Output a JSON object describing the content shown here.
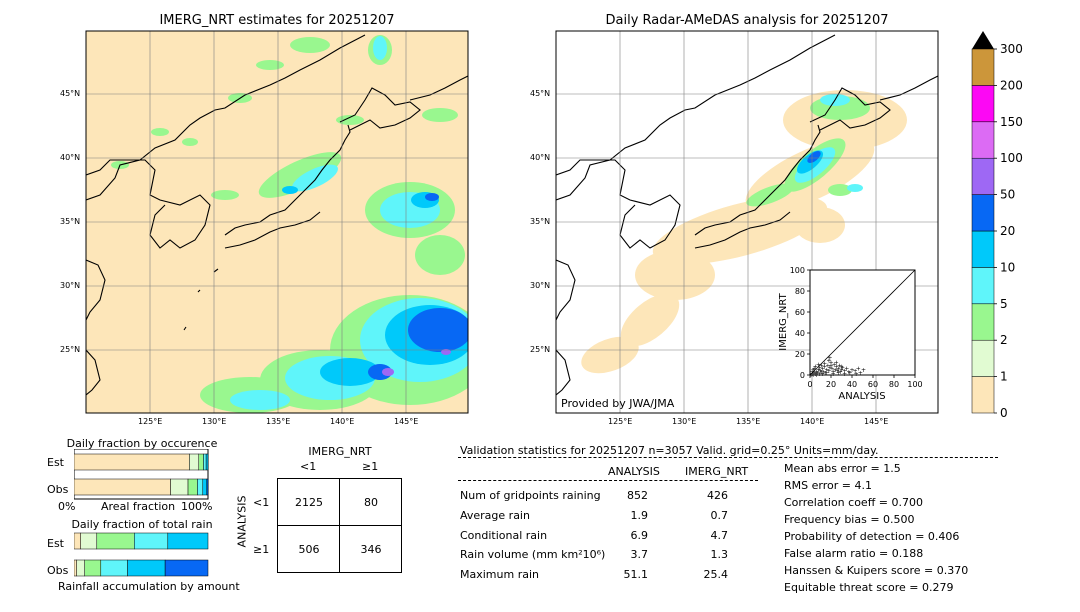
{
  "left_map": {
    "title": "IMERG_NRT estimates for 20251207",
    "lon_ticks": [
      "125°E",
      "130°E",
      "135°E",
      "140°E",
      "145°E"
    ],
    "lat_ticks": [
      "45°N",
      "40°N",
      "35°N",
      "30°N",
      "25°N"
    ]
  },
  "right_map": {
    "title": "Daily Radar-AMeDAS analysis for 20251207",
    "credit": "Provided by JWA/JMA",
    "lon_ticks": [
      "125°E",
      "130°E",
      "135°E",
      "140°E",
      "145°E"
    ],
    "lat_ticks": [
      "45°N",
      "40°N",
      "35°N",
      "30°N",
      "25°N"
    ]
  },
  "colorbar": {
    "labels": [
      "0",
      "1",
      "2",
      "5",
      "10",
      "20",
      "50",
      "100",
      "150",
      "200",
      "300"
    ],
    "colors": [
      "#fde6b9",
      "#e1fbd2",
      "#99f78f",
      "#5ff5fa",
      "#00c9fa",
      "#0768f4",
      "#9e68f4",
      "#dc6bf4",
      "#fc08f4",
      "#cc963a",
      "#000000"
    ]
  },
  "occurrence": {
    "title": "Daily fraction by occurence",
    "rows": [
      "Est",
      "Obs"
    ],
    "x_left": "0%",
    "x_mid": "Areal fraction",
    "x_right": "100%"
  },
  "total_rain": {
    "title": "Daily fraction of total rain",
    "rows": [
      "Est",
      "Obs"
    ],
    "xlabel": "Rainfall accumulation by amount"
  },
  "contingency": {
    "col_title": "IMERG_NRT",
    "col_labels": [
      "<1",
      "≥1"
    ],
    "row_title": "ANALYSIS",
    "row_labels": [
      "<1",
      "≥1"
    ],
    "cells": [
      [
        "2125",
        "80"
      ],
      [
        "506",
        "346"
      ]
    ]
  },
  "stats": {
    "header": "Validation statistics for 20251207  n=3057 Valid. grid=0.25° Units=mm/day.",
    "col_analysis": "ANALYSIS",
    "col_imerg": "IMERG_NRT",
    "rows": [
      {
        "label": "Num of gridpoints raining",
        "analysis": "852",
        "imerg": "426"
      },
      {
        "label": "Average rain",
        "analysis": "1.9",
        "imerg": "0.7"
      },
      {
        "label": "Conditional rain",
        "analysis": "6.9",
        "imerg": "4.7"
      },
      {
        "label": "Rain volume (mm km²10⁶)",
        "analysis": "3.7",
        "imerg": "1.3"
      },
      {
        "label": "Maximum rain",
        "analysis": "51.1",
        "imerg": "25.4"
      }
    ],
    "scores": [
      "Mean abs error =    1.5",
      "RMS error =    4.1",
      "Correlation coeff =  0.700",
      "Frequency bias =  0.500",
      "Probability of detection =  0.406",
      "False alarm ratio =  0.188",
      "Hanssen & Kuipers score =  0.370",
      "Equitable threat score =  0.279"
    ]
  },
  "chart_data": [
    {
      "type": "scatter",
      "xlabel": "ANALYSIS",
      "ylabel": "IMERG_NRT",
      "xlim": [
        0,
        100
      ],
      "ylim": [
        0,
        100
      ],
      "x_ticks": [
        "0",
        "20",
        "40",
        "60",
        "80",
        "100"
      ],
      "y_ticks": [
        "0",
        "20",
        "40",
        "60",
        "80",
        "100"
      ],
      "points": [
        [
          1,
          0
        ],
        [
          2,
          1
        ],
        [
          3,
          0
        ],
        [
          4,
          2
        ],
        [
          5,
          1
        ],
        [
          6,
          3
        ],
        [
          7,
          2
        ],
        [
          8,
          5
        ],
        [
          9,
          1
        ],
        [
          10,
          4
        ],
        [
          12,
          6
        ],
        [
          13,
          3
        ],
        [
          14,
          8
        ],
        [
          15,
          2
        ],
        [
          16,
          5
        ],
        [
          17,
          9
        ],
        [
          18,
          4
        ],
        [
          19,
          7
        ],
        [
          20,
          12
        ],
        [
          21,
          6
        ],
        [
          22,
          3
        ],
        [
          23,
          10
        ],
        [
          24,
          5
        ],
        [
          25,
          8
        ],
        [
          26,
          4
        ],
        [
          27,
          6
        ],
        [
          28,
          9
        ],
        [
          29,
          3
        ],
        [
          30,
          5
        ],
        [
          31,
          7
        ],
        [
          33,
          4
        ],
        [
          35,
          6
        ],
        [
          37,
          3
        ],
        [
          40,
          5
        ],
        [
          43,
          4
        ],
        [
          46,
          6
        ],
        [
          51,
          5
        ],
        [
          3,
          5
        ],
        [
          5,
          8
        ],
        [
          8,
          10
        ],
        [
          11,
          3
        ],
        [
          14,
          11
        ],
        [
          18,
          14
        ],
        [
          20,
          9
        ],
        [
          25,
          12
        ],
        [
          30,
          8
        ],
        [
          12,
          1
        ],
        [
          16,
          2
        ],
        [
          22,
          1
        ],
        [
          27,
          2
        ],
        [
          33,
          1
        ],
        [
          38,
          2
        ],
        [
          44,
          1
        ],
        [
          48,
          2
        ],
        [
          2,
          3
        ],
        [
          4,
          6
        ],
        [
          6,
          0
        ],
        [
          9,
          7
        ],
        [
          11,
          9
        ],
        [
          19,
          16
        ]
      ]
    },
    {
      "type": "bar",
      "title": "Daily fraction by occurence",
      "categories": [
        "Est",
        "Obs"
      ],
      "series": [
        {
          "values": [
            0.861,
            0.721
          ]
        },
        {
          "values": [
            0.07,
            0.13
          ]
        },
        {
          "values": [
            0.035,
            0.07
          ]
        },
        {
          "values": [
            0.02,
            0.04
          ]
        },
        {
          "values": [
            0.014,
            0.03
          ]
        },
        {
          "values": [
            0.0,
            0.009
          ]
        }
      ]
    },
    {
      "type": "bar",
      "title": "Daily fraction of total rain",
      "categories": [
        "Est",
        "Obs"
      ],
      "series": [
        {
          "values": [
            0.05,
            0.02
          ]
        },
        {
          "values": [
            0.12,
            0.06
          ]
        },
        {
          "values": [
            0.28,
            0.12
          ]
        },
        {
          "values": [
            0.25,
            0.2
          ]
        },
        {
          "values": [
            0.3,
            0.28
          ]
        },
        {
          "values": [
            0.0,
            0.32
          ]
        }
      ]
    }
  ]
}
